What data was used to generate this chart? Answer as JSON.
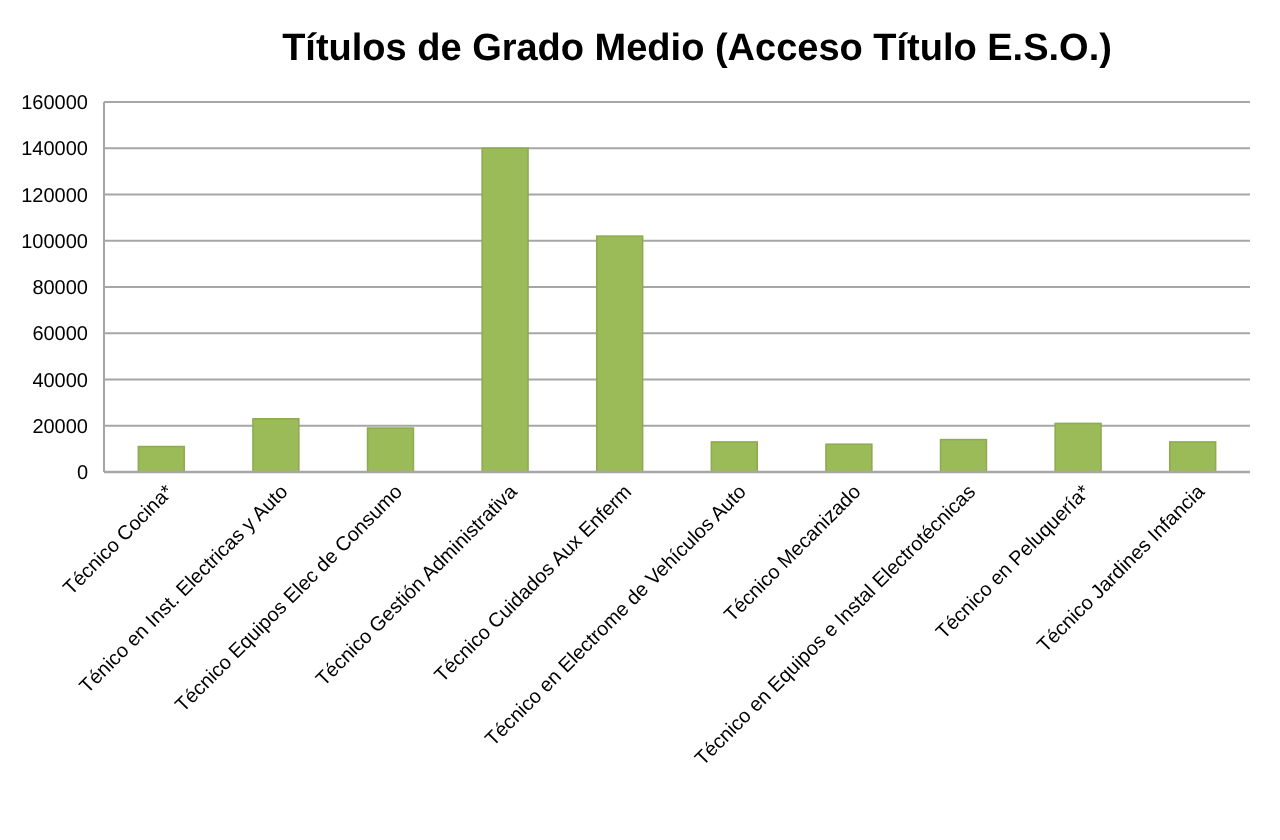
{
  "chart_data": {
    "type": "bar",
    "title": "Títulos de Grado Medio (Acceso Título E.S.O.)",
    "categories": [
      "Técnico Cocina*",
      "Ténico en Inst. Electricas y Auto",
      "Técnico Equipos Elec de Consumo",
      "Técnico Gestión Administrativa",
      "Técnico Cuidados Aux Enferm",
      "Técnico en Electrome de Vehículos Auto",
      "Técnico Mecanizado",
      "Técnico en Equipos e Instal Electrotécnicas",
      "Técnico en Peluquería*",
      "Técnico Jardines Infancia"
    ],
    "values": [
      11000,
      23000,
      19000,
      140000,
      102000,
      13000,
      12000,
      14000,
      21000,
      13000
    ],
    "color": "#9bbb59",
    "ylim": [
      0,
      160000
    ],
    "yticks": [
      0,
      20000,
      40000,
      60000,
      80000,
      100000,
      120000,
      140000,
      160000
    ],
    "grid": "y"
  }
}
